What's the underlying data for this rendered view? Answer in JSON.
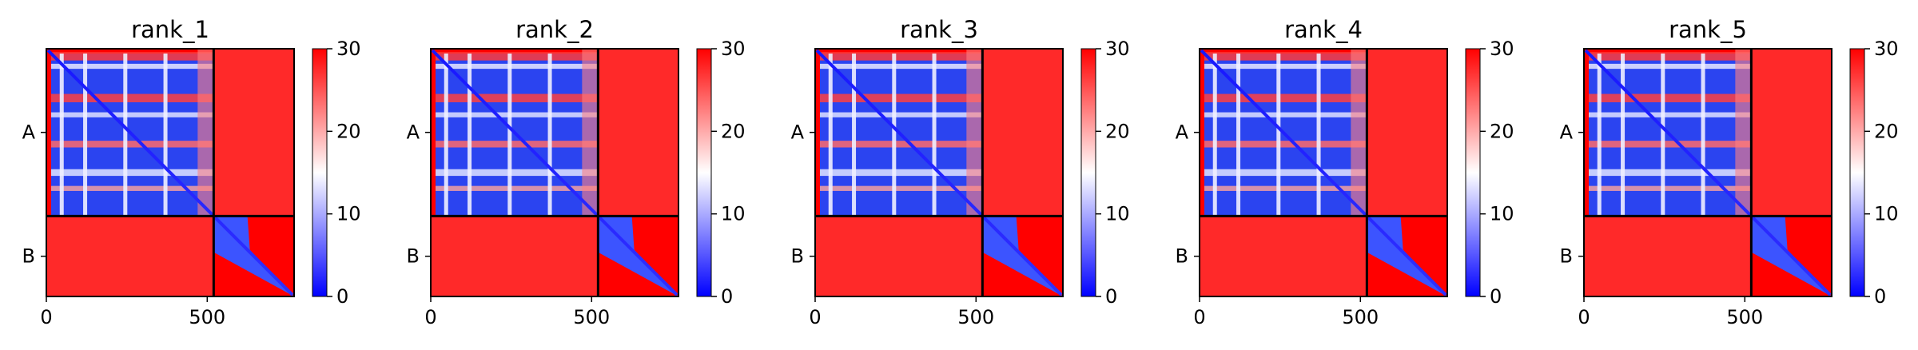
{
  "chart_data": [
    {
      "type": "heatmap",
      "title": "rank_1",
      "x_ticks": [
        0,
        500
      ],
      "xlim": [
        0,
        770
      ],
      "y_tick_labels": [
        "A",
        "B"
      ],
      "chain_lengths": {
        "A": 520,
        "B": 250
      },
      "chain_boundary": 520,
      "colorbar": {
        "ticks": [
          0,
          10,
          20,
          30
        ],
        "range": [
          0,
          30
        ],
        "colormap": [
          "#0000ff",
          "#ffffff",
          "#ff0000"
        ]
      },
      "colors": {
        "low": "#0000ff",
        "mid": "#ffffff",
        "high": "#ff0000"
      }
    },
    {
      "type": "heatmap",
      "title": "rank_2",
      "x_ticks": [
        0,
        500
      ],
      "xlim": [
        0,
        770
      ],
      "y_tick_labels": [
        "A",
        "B"
      ],
      "chain_lengths": {
        "A": 520,
        "B": 250
      },
      "chain_boundary": 520,
      "colorbar": {
        "ticks": [
          0,
          10,
          20,
          30
        ],
        "range": [
          0,
          30
        ],
        "colormap": [
          "#0000ff",
          "#ffffff",
          "#ff0000"
        ]
      },
      "colors": {
        "low": "#0000ff",
        "mid": "#ffffff",
        "high": "#ff0000"
      }
    },
    {
      "type": "heatmap",
      "title": "rank_3",
      "x_ticks": [
        0,
        500
      ],
      "xlim": [
        0,
        770
      ],
      "y_tick_labels": [
        "A",
        "B"
      ],
      "chain_lengths": {
        "A": 520,
        "B": 250
      },
      "chain_boundary": 520,
      "colorbar": {
        "ticks": [
          0,
          10,
          20,
          30
        ],
        "range": [
          0,
          30
        ],
        "colormap": [
          "#0000ff",
          "#ffffff",
          "#ff0000"
        ]
      },
      "colors": {
        "low": "#0000ff",
        "mid": "#ffffff",
        "high": "#ff0000"
      }
    },
    {
      "type": "heatmap",
      "title": "rank_4",
      "x_ticks": [
        0,
        500
      ],
      "xlim": [
        0,
        770
      ],
      "y_tick_labels": [
        "A",
        "B"
      ],
      "chain_lengths": {
        "A": 520,
        "B": 250
      },
      "chain_boundary": 520,
      "colorbar": {
        "ticks": [
          0,
          10,
          20,
          30
        ],
        "range": [
          0,
          30
        ],
        "colormap": [
          "#0000ff",
          "#ffffff",
          "#ff0000"
        ]
      },
      "colors": {
        "low": "#0000ff",
        "mid": "#ffffff",
        "high": "#ff0000"
      }
    },
    {
      "type": "heatmap",
      "title": "rank_5",
      "x_ticks": [
        0,
        500
      ],
      "xlim": [
        0,
        770
      ],
      "y_tick_labels": [
        "A",
        "B"
      ],
      "chain_lengths": {
        "A": 520,
        "B": 250
      },
      "chain_boundary": 520,
      "colorbar": {
        "ticks": [
          0,
          10,
          20,
          30
        ],
        "range": [
          0,
          30
        ],
        "colormap": [
          "#0000ff",
          "#ffffff",
          "#ff0000"
        ]
      },
      "colors": {
        "low": "#0000ff",
        "mid": "#ffffff",
        "high": "#ff0000"
      }
    }
  ]
}
